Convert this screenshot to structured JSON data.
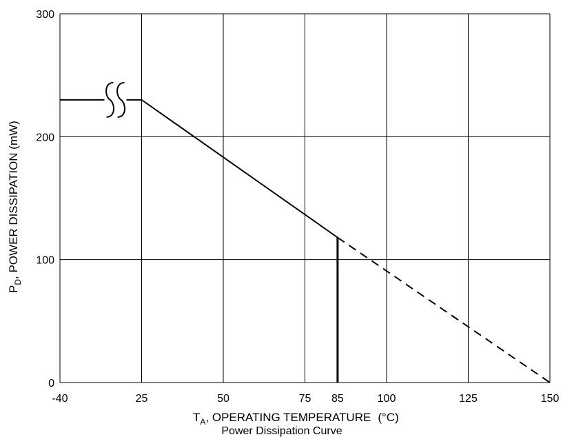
{
  "chart_data": {
    "type": "line",
    "title": "Power Dissipation Curve",
    "xlabel": {
      "main": "T",
      "sub": "A",
      "rest": ", OPERATING TEMPERATURE",
      "unit": "(°C)"
    },
    "ylabel": {
      "main": "P",
      "sub": "D",
      "rest": ", POWER DISSIPATION (mW)"
    },
    "x_ticks": [
      "-40",
      "25",
      "50",
      "75",
      "85",
      "100",
      "125",
      "150"
    ],
    "x_tick_values": [
      0,
      25,
      50,
      75,
      85,
      100,
      125,
      150
    ],
    "y_ticks": [
      "0",
      "100",
      "200",
      "300"
    ],
    "y_tick_values": [
      0,
      100,
      200,
      300
    ],
    "xlim": [
      0,
      150
    ],
    "ylim": [
      0,
      300
    ],
    "grid_x": [
      0,
      25,
      50,
      75,
      100,
      125,
      150
    ],
    "grid_y": [
      0,
      100,
      200,
      300
    ],
    "series": [
      {
        "style": "solid",
        "x": [
          0,
          25,
          85
        ],
        "y": [
          230,
          230,
          118
        ]
      },
      {
        "style": "dashed",
        "x": [
          85,
          150
        ],
        "y": [
          118,
          0
        ]
      }
    ],
    "vertical_marker": {
      "x": 85,
      "y": [
        0,
        118
      ]
    },
    "axis_break": {
      "x": 17
    }
  }
}
